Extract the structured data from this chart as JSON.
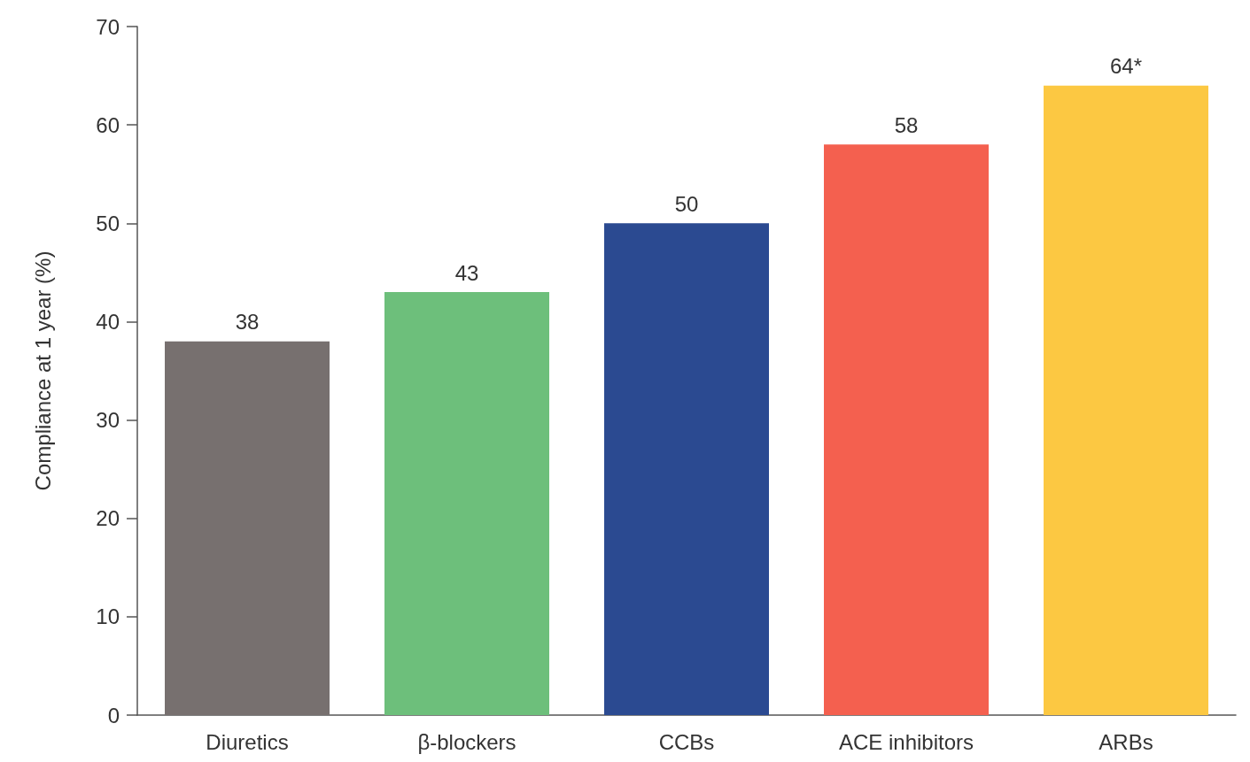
{
  "chart_data": {
    "type": "bar",
    "ylabel": "Compliance at 1 year (%)",
    "categories": [
      "Diuretics",
      "β-blockers",
      "CCBs",
      "ACE inhibitors",
      "ARBs"
    ],
    "values": [
      38,
      43,
      50,
      58,
      64
    ],
    "colors": [
      "#77706f",
      "#6dbf7b",
      "#2b4a91",
      "#f4604f",
      "#fcc842"
    ],
    "value_labels": [
      "38",
      "43",
      "50",
      "58",
      "64*"
    ],
    "ylim": [
      0,
      70
    ],
    "yticks": [
      0,
      10,
      20,
      30,
      40,
      50,
      60,
      70
    ],
    "grid": false
  }
}
